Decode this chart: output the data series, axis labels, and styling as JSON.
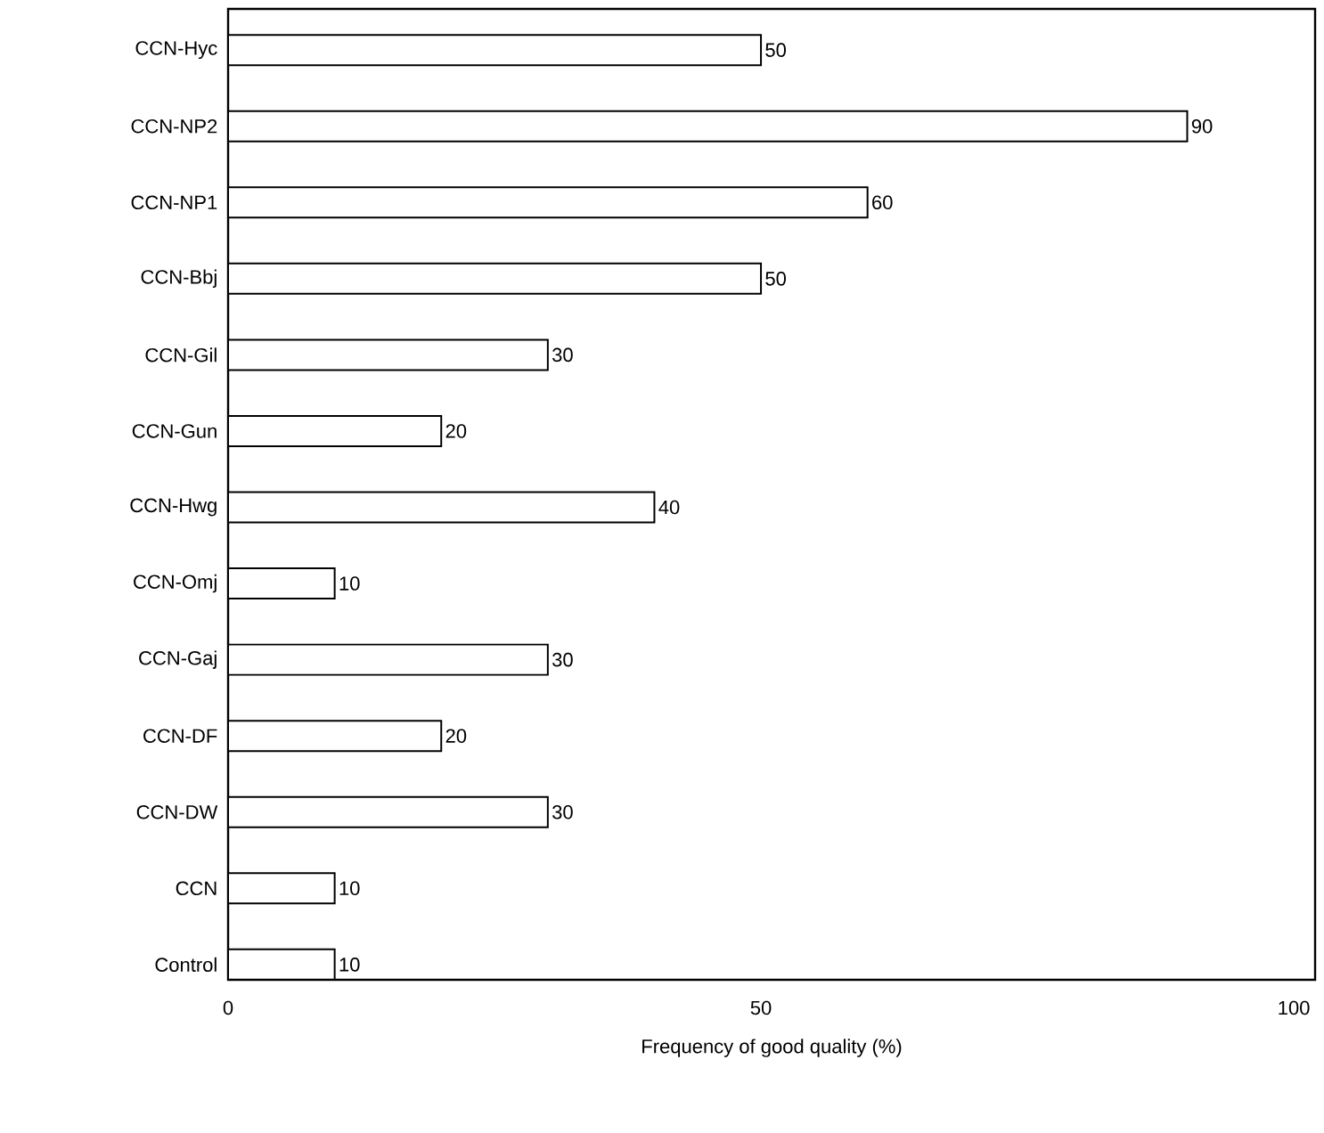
{
  "chart_data": {
    "type": "bar",
    "orientation": "horizontal",
    "xlabel": "Frequency of good quality (%)",
    "categories": [
      "CCN-Hyc",
      "CCN-NP2",
      "CCN-NP1",
      "CCN-Bbj",
      "CCN-Gil",
      "CCN-Gun",
      "CCN-Hwg",
      "CCN-Omj",
      "CCN-Gaj",
      "CCN-DF",
      "CCN-DW",
      "CCN",
      "Control"
    ],
    "values": [
      50,
      90,
      60,
      50,
      30,
      20,
      40,
      10,
      30,
      20,
      30,
      10,
      10
    ],
    "color": "#ffffff",
    "xlim": [
      0,
      102
    ],
    "xticks": [
      0,
      50,
      100
    ],
    "data_labels": true,
    "grid": false
  }
}
